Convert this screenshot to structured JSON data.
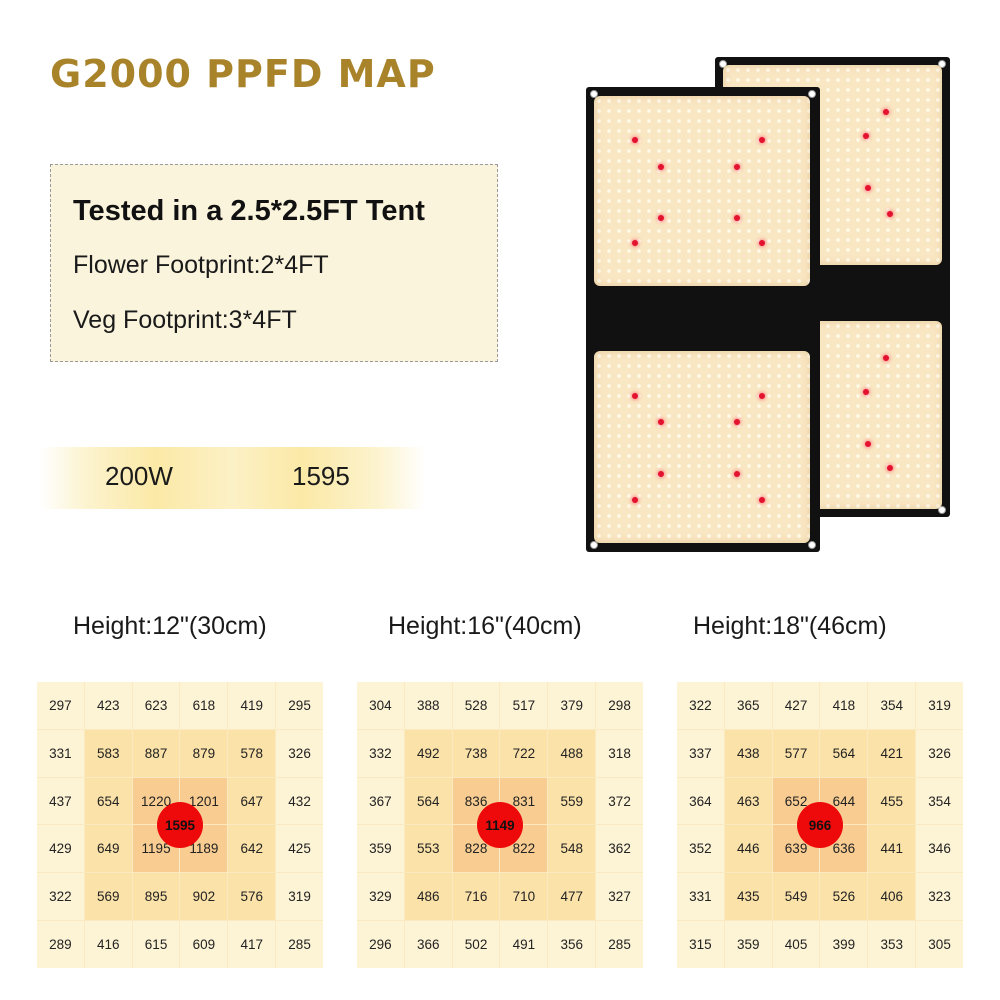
{
  "title": "G2000 PPFD MAP",
  "specs": {
    "heading": "Tested in a 2.5*2.5FT Tent",
    "flower": "Flower Footprint:2*4FT",
    "veg": "Veg Footprint:3*4FT"
  },
  "power": {
    "watt": "200W",
    "ppfd": "1595"
  },
  "colors": {
    "title": "#a9832a",
    "center_dot": "#ee0a0a"
  },
  "maps": [
    {
      "label": "Height:12\"(30cm)",
      "center": "1595",
      "rows": [
        [
          "297",
          "423",
          "623",
          "618",
          "419",
          "295"
        ],
        [
          "331",
          "583",
          "887",
          "879",
          "578",
          "326"
        ],
        [
          "437",
          "654",
          "1220",
          "1201",
          "647",
          "432"
        ],
        [
          "429",
          "649",
          "1195",
          "1189",
          "642",
          "425"
        ],
        [
          "322",
          "569",
          "895",
          "902",
          "576",
          "319"
        ],
        [
          "289",
          "416",
          "615",
          "609",
          "417",
          "285"
        ]
      ]
    },
    {
      "label": "Height:16\"(40cm)",
      "center": "1149",
      "rows": [
        [
          "304",
          "388",
          "528",
          "517",
          "379",
          "298"
        ],
        [
          "332",
          "492",
          "738",
          "722",
          "488",
          "318"
        ],
        [
          "367",
          "564",
          "836",
          "831",
          "559",
          "372"
        ],
        [
          "359",
          "553",
          "828",
          "822",
          "548",
          "362"
        ],
        [
          "329",
          "486",
          "716",
          "710",
          "477",
          "327"
        ],
        [
          "296",
          "366",
          "502",
          "491",
          "356",
          "285"
        ]
      ]
    },
    {
      "label": "Height:18\"(46cm)",
      "center": "966",
      "rows": [
        [
          "322",
          "365",
          "427",
          "418",
          "354",
          "319"
        ],
        [
          "337",
          "438",
          "577",
          "564",
          "421",
          "326"
        ],
        [
          "364",
          "463",
          "652",
          "644",
          "455",
          "354"
        ],
        [
          "352",
          "446",
          "639",
          "636",
          "441",
          "346"
        ],
        [
          "331",
          "435",
          "549",
          "526",
          "406",
          "323"
        ],
        [
          "315",
          "359",
          "405",
          "399",
          "353",
          "305"
        ]
      ]
    }
  ]
}
